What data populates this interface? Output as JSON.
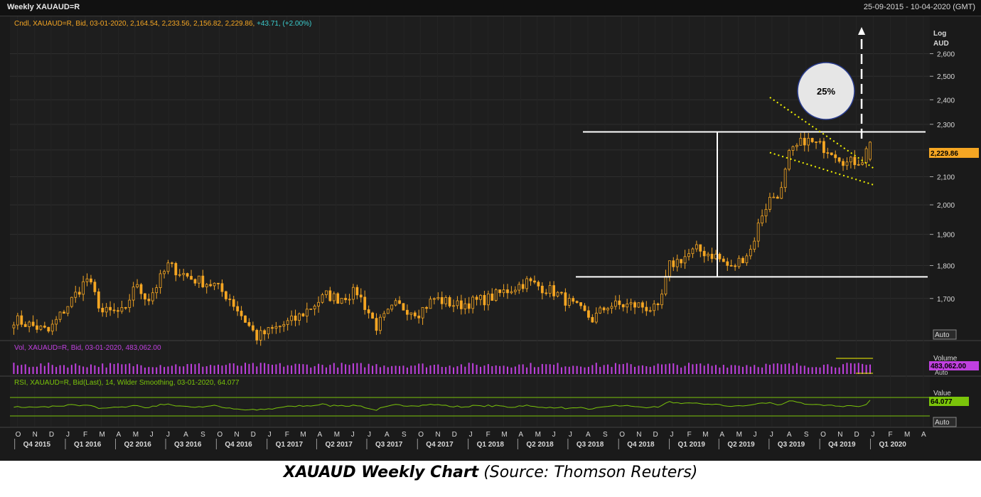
{
  "window": {
    "title": "Weekly XAUAUD=R",
    "date_range": "25-09-2015 - 10-04-2020 (GMT)"
  },
  "price_panel": {
    "legend_prefix": "Cndl, XAUAUD=R, Bid, 03-01-2020, 2,164.54, 2,233.56, 2,156.82, 2,229.86, ",
    "legend_change": "+43.71, (+2.00%)",
    "axis_title_1": "Log",
    "axis_title_2": "AUD",
    "last_price_label": "2,229.86",
    "auto_label": "Auto",
    "target_label": "25%"
  },
  "volume_panel": {
    "legend": "Vol, XAUAUD=R, Bid, 03-01-2020, 483,062.00",
    "axis_title": "Volume",
    "last_label": "483,062.00",
    "auto_label": "Auto"
  },
  "rsi_panel": {
    "legend": "RSI, XAUAUD=R, Bid(Last),  14, Wilder Smoothing, 03-01-2020, 64.077",
    "axis_title": "Value",
    "last_label": "64.077",
    "auto_label": "Auto"
  },
  "x_axis": {
    "months": [
      "O",
      "N",
      "D",
      "J",
      "F",
      "M",
      "A",
      "M",
      "J",
      "J",
      "A",
      "S",
      "O",
      "N",
      "D",
      "J",
      "F",
      "M",
      "A",
      "M",
      "J",
      "J",
      "A",
      "S",
      "O",
      "N",
      "D",
      "J",
      "F",
      "M",
      "A",
      "M",
      "J",
      "J",
      "A",
      "S",
      "O",
      "N",
      "D",
      "J",
      "F",
      "M",
      "A",
      "M",
      "J",
      "J",
      "A",
      "S",
      "O",
      "N",
      "D",
      "J",
      "F",
      "M",
      "A"
    ],
    "quarters": [
      "Q4 2015",
      "Q1 2016",
      "Q2 2016",
      "Q3 2016",
      "Q4 2016",
      "Q1 2017",
      "Q2 2017",
      "Q3 2017",
      "Q4 2017",
      "Q1 2018",
      "Q2 2018",
      "Q3 2018",
      "Q4 2018",
      "Q1 2019",
      "Q2 2019",
      "Q3 2019",
      "Q4 2019",
      "Q1 2020"
    ]
  },
  "caption": {
    "title": "XAUAUD Weekly Chart",
    "source": " (Source: Thomson Reuters)"
  },
  "colors": {
    "background": "#1a1a1a",
    "candle": "#f5a623",
    "volume": "#c040e0",
    "rsi": "#7ac40a",
    "legend_price": "#f5a623",
    "legend_change": "#3ccfd0",
    "annotation_white": "#ffffff",
    "trendline": "#f5f500"
  },
  "chart_data": [
    {
      "type": "candlestick",
      "title": "Weekly XAUAUD=R",
      "ylabel": "Log AUD",
      "scale": "log",
      "yticks": [
        1700,
        1800,
        1900,
        2000,
        2100,
        2200,
        2300,
        2400,
        2500,
        2600
      ],
      "ytick_labels": [
        "1,700",
        "1,800",
        "1,900",
        "2,000",
        "2,100",
        "2,200",
        "2,300",
        "2,400",
        "2,500",
        "2,600"
      ],
      "ylim": [
        1590,
        2750
      ],
      "x_start": "2015-09-25",
      "x_end": "2020-04-10",
      "last_bar": {
        "date": "03-01-2020",
        "open": 2164.54,
        "high": 2233.56,
        "low": 2156.82,
        "close": 2229.86
      },
      "weekly_close_anchors": [
        {
          "date": "2015-10-02",
          "value": 1640
        },
        {
          "date": "2015-12-04",
          "value": 1605
        },
        {
          "date": "2016-02-12",
          "value": 1760
        },
        {
          "date": "2016-03-11",
          "value": 1660
        },
        {
          "date": "2016-04-22",
          "value": 1660
        },
        {
          "date": "2016-05-06",
          "value": 1740
        },
        {
          "date": "2016-06-03",
          "value": 1700
        },
        {
          "date": "2016-07-08",
          "value": 1800
        },
        {
          "date": "2016-08-19",
          "value": 1760
        },
        {
          "date": "2016-09-30",
          "value": 1740
        },
        {
          "date": "2016-10-28",
          "value": 1700
        },
        {
          "date": "2016-12-16",
          "value": 1590
        },
        {
          "date": "2017-02-24",
          "value": 1640
        },
        {
          "date": "2017-04-21",
          "value": 1710
        },
        {
          "date": "2017-05-12",
          "value": 1700
        },
        {
          "date": "2017-06-16",
          "value": 1720
        },
        {
          "date": "2017-07-21",
          "value": 1620
        },
        {
          "date": "2017-08-25",
          "value": 1680
        },
        {
          "date": "2017-10-06",
          "value": 1660
        },
        {
          "date": "2017-11-03",
          "value": 1700
        },
        {
          "date": "2017-12-15",
          "value": 1680
        },
        {
          "date": "2018-02-09",
          "value": 1700
        },
        {
          "date": "2018-04-20",
          "value": 1750
        },
        {
          "date": "2018-06-08",
          "value": 1720
        },
        {
          "date": "2018-08-17",
          "value": 1640
        },
        {
          "date": "2018-09-14",
          "value": 1680
        },
        {
          "date": "2018-11-09",
          "value": 1680
        },
        {
          "date": "2018-12-14",
          "value": 1665
        },
        {
          "date": "2019-01-04",
          "value": 1800
        },
        {
          "date": "2019-02-22",
          "value": 1850
        },
        {
          "date": "2019-03-29",
          "value": 1830
        },
        {
          "date": "2019-04-26",
          "value": 1790
        },
        {
          "date": "2019-05-31",
          "value": 1850
        },
        {
          "date": "2019-06-21",
          "value": 1970
        },
        {
          "date": "2019-07-05",
          "value": 2020
        },
        {
          "date": "2019-07-26",
          "value": 2050
        },
        {
          "date": "2019-08-09",
          "value": 2180
        },
        {
          "date": "2019-09-06",
          "value": 2240
        },
        {
          "date": "2019-09-27",
          "value": 2220
        },
        {
          "date": "2019-10-25",
          "value": 2200
        },
        {
          "date": "2019-11-22",
          "value": 2150
        },
        {
          "date": "2019-12-20",
          "value": 2164.54
        },
        {
          "date": "2020-01-03",
          "value": 2229.86
        }
      ],
      "annotations": [
        {
          "type": "horizontal_line",
          "value": 2270
        },
        {
          "type": "horizontal_line",
          "value": 1765
        },
        {
          "type": "trendline",
          "from": {
            "date": "2019-07-05",
            "value": 2410
          },
          "to": {
            "date": "2020-01-10",
            "value": 2130
          }
        },
        {
          "type": "trendline",
          "from": {
            "date": "2019-07-05",
            "value": 2190
          },
          "to": {
            "date": "2020-01-10",
            "value": 2070
          }
        },
        {
          "type": "target_label",
          "text": "25%"
        }
      ]
    },
    {
      "type": "bar",
      "title": "Vol, XAUAUD=R, Bid",
      "last_value": 483062.0
    },
    {
      "type": "line",
      "title": "RSI, XAUAUD=R, Bid(Last), 14, Wilder Smoothing",
      "last_value": 64.077,
      "levels": [
        70,
        30
      ]
    }
  ]
}
